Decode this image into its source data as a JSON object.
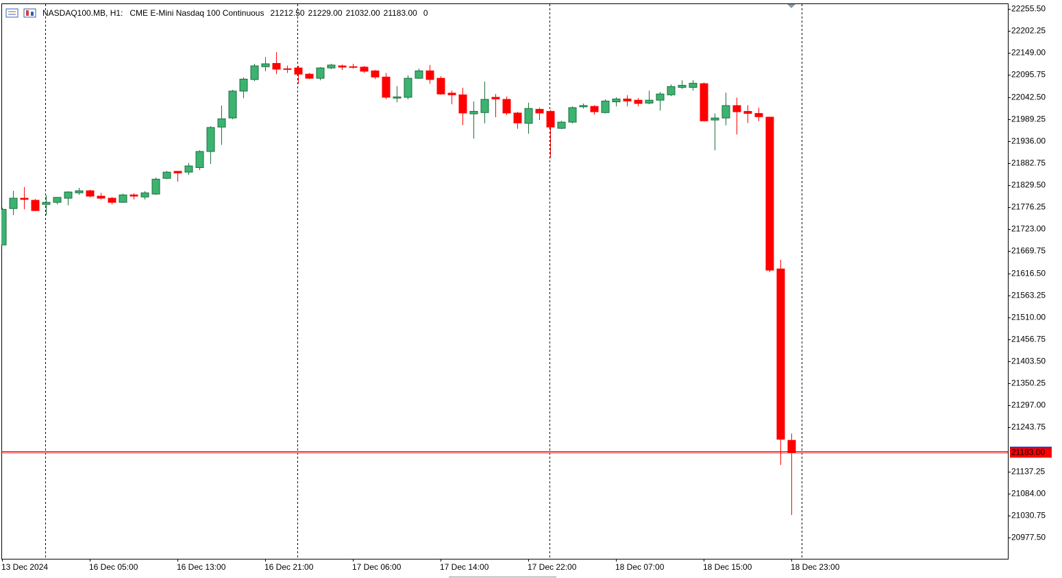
{
  "chart_data": {
    "type": "candlestick",
    "header": {
      "symbol": "NASDAQ100.MB, H1:",
      "description": "CME E-Mini Nasdaq 100 Continuous",
      "ohlc": [
        "21212.50",
        "21229.00",
        "21032.00",
        "21183.00"
      ],
      "volume": 0
    },
    "categories": [
      "13 Dec 2024",
      null,
      null,
      null,
      null,
      null,
      null,
      null,
      "16 Dec 05:00",
      null,
      null,
      null,
      null,
      null,
      null,
      null,
      "16 Dec 13:00",
      null,
      null,
      null,
      null,
      null,
      null,
      null,
      "16 Dec 21:00",
      null,
      null,
      null,
      null,
      null,
      null,
      null,
      "17 Dec 06:00",
      null,
      null,
      null,
      null,
      null,
      null,
      null,
      "17 Dec 14:00",
      null,
      null,
      null,
      null,
      null,
      null,
      null,
      "17 Dec 22:00",
      null,
      null,
      null,
      null,
      null,
      null,
      null,
      "18 Dec 07:00",
      null,
      null,
      null,
      null,
      null,
      null,
      null,
      "18 Dec 15:00",
      null,
      null,
      null,
      null,
      null,
      null,
      null,
      "18 Dec 23:00"
    ],
    "open": [
      21685,
      21773,
      21798,
      21793,
      21783,
      21788,
      21798,
      21811,
      21816,
      21803,
      21798,
      21788,
      21806,
      21801,
      21808,
      21846,
      21863,
      21861,
      21872,
      21911,
      21970,
      21992,
      22057,
      22085,
      22116,
      22124,
      22111,
      22113,
      22098,
      22088,
      22113,
      22118,
      22116,
      22115,
      22106,
      22091,
      22040,
      22042,
      22088,
      22106,
      22088,
      22052,
      22048,
      22002,
      22005,
      22042,
      22037,
      22004,
      21979,
      22013,
      22008,
      21967,
      21982,
      22019,
      22020,
      22005,
      22031,
      22038,
      22035,
      22028,
      22035,
      22048,
      22066,
      22066,
      22075,
      21987,
      21992,
      22022,
      22008,
      22003,
      21994,
      21627,
      21212.5
    ],
    "high": [
      21775,
      21816,
      21825,
      21796,
      21805,
      21795,
      21815,
      21823,
      21818,
      21811,
      21801,
      21809,
      21810,
      21815,
      21848,
      21864,
      21864,
      21883,
      21914,
      21972,
      22022,
      22060,
      22090,
      22123,
      22139,
      22151,
      22119,
      22118,
      22101,
      22115,
      22123,
      22121,
      22123,
      22118,
      22108,
      22101,
      22069,
      22095,
      22111,
      22120,
      22093,
      22058,
      22065,
      22032,
      22080,
      22050,
      22044,
      22007,
      22029,
      22017,
      22012,
      21985,
      22020,
      22027,
      22023,
      22037,
      22042,
      22047,
      22040,
      22058,
      22055,
      22073,
      22083,
      22083,
      22078,
      22003,
      22053,
      22041,
      22023,
      22017,
      21995,
      21649,
      21229
    ],
    "low": [
      21685,
      21757,
      21771,
      21767,
      21757,
      21783,
      21781,
      21806,
      21800,
      21795,
      21783,
      21787,
      21795,
      21795,
      21806,
      21844,
      21838,
      21854,
      21866,
      21881,
      21927,
      21989,
      22040,
      22081,
      22105,
      22098,
      22101,
      22075,
      22086,
      22083,
      22110,
      22108,
      22111,
      22101,
      22086,
      22037,
      22030,
      22037,
      22087,
      22075,
      22048,
      22025,
      21975,
      21942,
      21979,
      21994,
      21999,
      21966,
      21954,
      21987,
      21896,
      21965,
      21979,
      22015,
      22000,
      22003,
      22020,
      22020,
      22020,
      22025,
      22010,
      22045,
      22062,
      22058,
      21984,
      21914,
      21974,
      21952,
      21980,
      21984,
      21619,
      21153,
      21032
    ],
    "close": [
      21771,
      21798,
      21795,
      21768,
      21788,
      21800,
      21813,
      21816,
      21803,
      21798,
      21788,
      21806,
      21803,
      21811,
      21844,
      21861,
      21859,
      21876,
      21911,
      21969,
      21990,
      22057,
      22086,
      22118,
      22123,
      22110,
      22110,
      22098,
      22088,
      22113,
      22120,
      22115,
      22115,
      22105,
      22091,
      22042,
      22043,
      22088,
      22106,
      22085,
      22050,
      22048,
      22004,
      22008,
      22037,
      22038,
      22004,
      21980,
      22015,
      22004,
      21970,
      21982,
      22017,
      22022,
      22007,
      22033,
      22038,
      22033,
      22027,
      22035,
      22050,
      22068,
      22071,
      22076,
      21985,
      21992,
      22022,
      22007,
      22003,
      21995,
      21624,
      21215,
      21183
    ],
    "up_color": "#3cb371",
    "up_border_color": "#1b6e3c",
    "down_color": "#ff0000",
    "ylim": [
      20926,
      22269
    ],
    "yticks": [
      {
        "value": 22255.5,
        "label": "22255.50"
      },
      {
        "value": 22202.25,
        "label": "22202.25"
      },
      {
        "value": 22149,
        "label": "22149.00"
      },
      {
        "value": 22095.75,
        "label": "22095.75"
      },
      {
        "value": 22042.5,
        "label": "22042.50"
      },
      {
        "value": 21989.25,
        "label": "21989.25"
      },
      {
        "value": 21936,
        "label": "21936.00"
      },
      {
        "value": 21882.75,
        "label": "21882.75"
      },
      {
        "value": 21829.5,
        "label": "21829.50"
      },
      {
        "value": 21776.25,
        "label": "21776.25"
      },
      {
        "value": 21723,
        "label": "21723.00"
      },
      {
        "value": 21669.75,
        "label": "21669.75"
      },
      {
        "value": 21616.5,
        "label": "21616.50"
      },
      {
        "value": 21563.25,
        "label": "21563.25"
      },
      {
        "value": 21510,
        "label": "21510.00"
      },
      {
        "value": 21456.75,
        "label": "21456.75"
      },
      {
        "value": 21403.5,
        "label": "21403.50"
      },
      {
        "value": 21350.25,
        "label": "21350.25"
      },
      {
        "value": 21297,
        "label": "21297.00"
      },
      {
        "value": 21243.75,
        "label": "21243.75"
      },
      {
        "value": 21137.25,
        "label": "21137.25"
      },
      {
        "value": 21084,
        "label": "21084.00"
      },
      {
        "value": 21030.75,
        "label": "21030.75"
      },
      {
        "value": 20977.5,
        "label": "20977.50"
      }
    ],
    "current_price": {
      "value": 21183,
      "label": "21183.00",
      "color": "#ff0000"
    },
    "grid": false
  }
}
